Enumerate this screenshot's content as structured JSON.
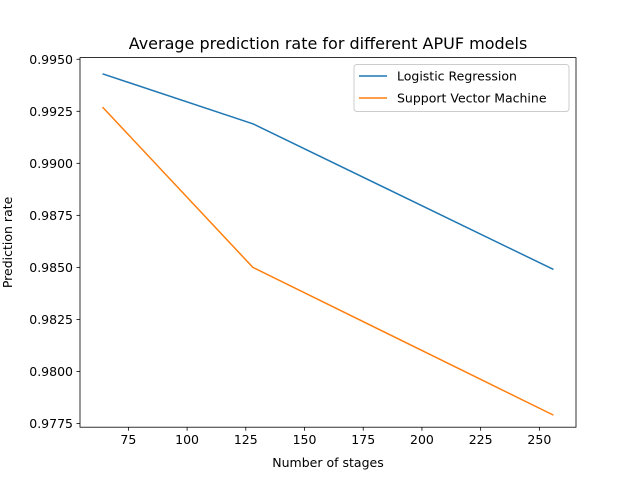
{
  "chart_data": {
    "type": "line",
    "title": "Average prediction rate for different APUF models",
    "xlabel": "Number of stages",
    "ylabel": "Prediction rate",
    "x": [
      64,
      128,
      256
    ],
    "series": [
      {
        "name": "Logistic Regression",
        "color": "#1f77b4",
        "values": [
          0.9943,
          0.9919,
          0.9849
        ]
      },
      {
        "name": "Support Vector Machine",
        "color": "#ff7f0e",
        "values": [
          0.9927,
          0.985,
          0.9779
        ]
      }
    ],
    "xlim": [
      54.4,
      265.6
    ],
    "ylim": [
      0.97732,
      0.99508
    ],
    "xticks": [
      75,
      100,
      125,
      150,
      175,
      200,
      225,
      250
    ],
    "xtick_labels": [
      "75",
      "100",
      "125",
      "150",
      "175",
      "200",
      "225",
      "250"
    ],
    "yticks": [
      0.9775,
      0.98,
      0.9825,
      0.985,
      0.9875,
      0.99,
      0.9925,
      0.995
    ],
    "ytick_labels": [
      "0.9775",
      "0.9800",
      "0.9825",
      "0.9850",
      "0.9875",
      "0.9900",
      "0.9925",
      "0.9950"
    ],
    "grid": false,
    "legend_position": "top-right"
  }
}
